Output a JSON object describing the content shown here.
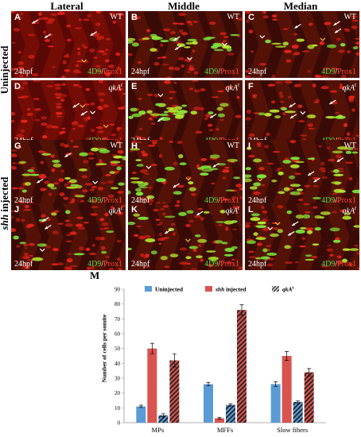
{
  "figure": {
    "columns": [
      "Lateral",
      "Middle",
      "Median"
    ],
    "rows": [
      "Uninjected",
      "shh injected"
    ],
    "panels": [
      {
        "letter": "A",
        "genotype": "WT",
        "time": "24hpf",
        "stain_green": "4D9",
        "stain_sep": "/",
        "stain_red": "Prox1"
      },
      {
        "letter": "B",
        "genotype": "WT",
        "time": "24hpf",
        "stain_green": "4D9",
        "stain_sep": "/",
        "stain_red": "Prox1"
      },
      {
        "letter": "C",
        "genotype": "WT",
        "time": "24hpf",
        "stain_green": "4D9",
        "stain_sep": "/",
        "stain_red": "Prox1"
      },
      {
        "letter": "D",
        "genotype": "qkA",
        "genotype_sup": "t",
        "time": "24hpf",
        "stain_green": "4D9",
        "stain_sep": "/",
        "stain_red": "Prox1"
      },
      {
        "letter": "E",
        "genotype": "qkA",
        "genotype_sup": "t",
        "time": "24hpf",
        "stain_green": "4D9",
        "stain_sep": "/",
        "stain_red": "Prox1"
      },
      {
        "letter": "F",
        "genotype": "qkA",
        "genotype_sup": "t",
        "time": "24hpf",
        "stain_green": "4D9",
        "stain_sep": "/",
        "stain_red": "Prox1"
      },
      {
        "letter": "G",
        "genotype": "WT",
        "time": "24hpf",
        "stain_green": "4D9",
        "stain_sep": "/",
        "stain_red": "Prox1"
      },
      {
        "letter": "H",
        "genotype": "WT",
        "time": "24hpf",
        "stain_green": "4D9",
        "stain_sep": "/",
        "stain_red": "Prox1"
      },
      {
        "letter": "I",
        "genotype": "WT",
        "time": "24hpf",
        "stain_green": "4D9",
        "stain_sep": "/",
        "stain_red": "Prox1"
      },
      {
        "letter": "J",
        "genotype": "qkA",
        "genotype_sup": "t",
        "time": "24hpf",
        "stain_green": "4D9",
        "stain_sep": "/",
        "stain_red": "Prox1"
      },
      {
        "letter": "K",
        "genotype": "qkA",
        "genotype_sup": "t",
        "time": "24hpf",
        "stain_green": "4D9",
        "stain_sep": "/",
        "stain_red": "Prox1"
      },
      {
        "letter": "L",
        "genotype": "qkA",
        "genotype_sup": "t",
        "time": "24hpf",
        "stain_green": "4D9",
        "stain_sep": "/",
        "stain_red": "Prox1"
      }
    ],
    "chart_letter": "M"
  },
  "chart_data": {
    "type": "bar",
    "title": "",
    "xlabel": "",
    "ylabel": "Number of cells per somite",
    "ylim": [
      0,
      90
    ],
    "yticks": [
      0,
      10,
      20,
      30,
      40,
      50,
      60,
      70,
      80,
      90
    ],
    "categories": [
      "MPs",
      "MFFs",
      "Slow fibers"
    ],
    "legend": [
      "Uninjected",
      "shh injected",
      "qkA"
    ],
    "legend_sup": [
      "",
      "",
      "t"
    ],
    "legend_position": "top",
    "series": [
      {
        "name": "Uninjected",
        "injection": "uninjected",
        "genotype": "WT",
        "color": "#5b9bd5",
        "values": [
          11,
          26,
          26
        ],
        "errors": [
          0.8,
          1.2,
          1.6
        ]
      },
      {
        "name": "shh injected",
        "injection": "shh",
        "genotype": "WT",
        "color": "#d9534f",
        "values": [
          50,
          3,
          45
        ],
        "errors": [
          3.5,
          0.6,
          3
        ]
      },
      {
        "name": "",
        "injection": "uninjected",
        "genotype": "qkA",
        "color": "#5b9bd5",
        "values": [
          5,
          12,
          14
        ],
        "errors": [
          1,
          0.8,
          0.7
        ]
      },
      {
        "name": "",
        "injection": "shh",
        "genotype": "qkA",
        "color": "#d9534f",
        "values": [
          42,
          76,
          34
        ],
        "errors": [
          4.5,
          3.5,
          2.5
        ]
      }
    ]
  }
}
